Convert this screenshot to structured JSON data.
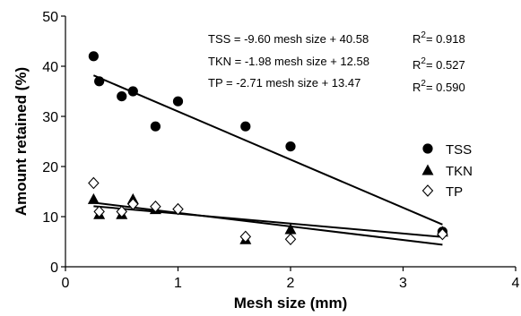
{
  "chart_data": {
    "type": "scatter",
    "xlabel": "Mesh size (mm)",
    "ylabel": "Amount retained (%)",
    "xlim": [
      0,
      4
    ],
    "ylim": [
      0,
      50
    ],
    "xticks": [
      0,
      1,
      2,
      3,
      4
    ],
    "yticks": [
      0,
      10,
      20,
      30,
      40,
      50
    ],
    "grid": false,
    "legend_position": "right",
    "series": [
      {
        "name": "TSS",
        "marker": "circle-filled",
        "x": [
          0.25,
          0.3,
          0.5,
          0.6,
          0.8,
          1.0,
          1.6,
          2.0,
          3.35
        ],
        "y": [
          42,
          37,
          34,
          35,
          28,
          33,
          28,
          24,
          7
        ],
        "fit": {
          "slope": -9.6,
          "intercept": 40.58
        },
        "equation": "TSS = -9.60 mesh size + 40.58",
        "r2_value": "= 0.918"
      },
      {
        "name": "TKN",
        "marker": "triangle-filled",
        "x": [
          0.25,
          0.3,
          0.5,
          0.6,
          0.8,
          1.6,
          2.0,
          3.35
        ],
        "y": [
          13.5,
          10.5,
          10.5,
          13.5,
          11.5,
          5.5,
          7.5,
          7
        ],
        "fit": {
          "slope": -1.98,
          "intercept": 12.58
        },
        "equation": "TKN = -1.98 mesh size + 12.58",
        "r2_value": "= 0.527"
      },
      {
        "name": "TP",
        "marker": "diamond-open",
        "x": [
          0.25,
          0.3,
          0.5,
          0.6,
          0.8,
          1.0,
          1.6,
          2.0,
          3.35
        ],
        "y": [
          16.7,
          11,
          11,
          12.5,
          12,
          11.5,
          6,
          5.5,
          6.5
        ],
        "fit": {
          "slope": -2.71,
          "intercept": 13.47
        },
        "equation": "TP = -2.71 mesh size + 13.47",
        "r2_value": "= 0.590"
      }
    ],
    "r2_prefix": "R",
    "r2_superscript": "2"
  }
}
